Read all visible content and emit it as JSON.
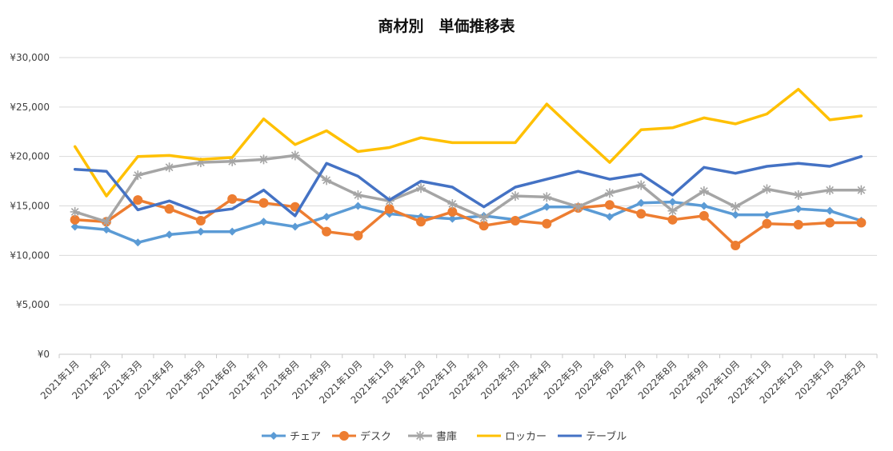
{
  "chart_data": {
    "type": "line",
    "title": "商材別　単価推移表",
    "xlabel": "",
    "ylabel": "",
    "ylim": [
      0,
      30000
    ],
    "yticks": [
      0,
      5000,
      10000,
      15000,
      20000,
      25000,
      30000
    ],
    "ytick_labels": [
      "¥0",
      "¥5,000",
      "¥10,000",
      "¥15,000",
      "¥20,000",
      "¥25,000",
      "¥30,000"
    ],
    "grid": true,
    "legend_position": "bottom",
    "categories": [
      "2021年1月",
      "2021年2月",
      "2021年3月",
      "2021年4月",
      "2021年5月",
      "2021年6月",
      "2021年7月",
      "2021年8月",
      "2021年9月",
      "2021年10月",
      "2021年11月",
      "2021年12月",
      "2022年1月",
      "2022年2月",
      "2022年3月",
      "2022年4月",
      "2022年5月",
      "2022年6月",
      "2022年7月",
      "2022年8月",
      "2022年9月",
      "2022年10月",
      "2022年11月",
      "2022年12月",
      "2023年1月",
      "2023年2月"
    ],
    "series": [
      {
        "name": "チェア",
        "color": "#5B9BD5",
        "marker": "diamond",
        "values": [
          12900,
          12600,
          11300,
          12100,
          12400,
          12400,
          13400,
          12900,
          13900,
          15000,
          14200,
          13900,
          13700,
          14000,
          13600,
          14900,
          14900,
          13900,
          15300,
          15400,
          15000,
          14100,
          14100,
          14700,
          14500,
          13500
        ]
      },
      {
        "name": "デスク",
        "color": "#ED7D31",
        "marker": "circle",
        "values": [
          13600,
          13400,
          15600,
          14700,
          13500,
          15700,
          15300,
          14900,
          12400,
          12000,
          14700,
          13400,
          14400,
          13000,
          13500,
          13200,
          14800,
          15100,
          14200,
          13600,
          14000,
          11000,
          13200,
          13100,
          13300,
          13300
        ]
      },
      {
        "name": "書庫",
        "color": "#A5A5A5",
        "marker": "star",
        "values": [
          14400,
          13400,
          18100,
          18900,
          19400,
          19500,
          19700,
          20100,
          17600,
          16100,
          15500,
          16800,
          15200,
          13800,
          16000,
          15900,
          14900,
          16300,
          17100,
          14500,
          16500,
          14900,
          16700,
          16100,
          16600,
          16600
        ]
      },
      {
        "name": "ロッカー",
        "color": "#FFC000",
        "marker": "none",
        "values": [
          21000,
          16000,
          20000,
          20100,
          19700,
          19900,
          23800,
          21200,
          22600,
          20500,
          20900,
          21900,
          21400,
          21400,
          21400,
          25300,
          22300,
          19400,
          22700,
          22900,
          23900,
          23300,
          24300,
          26800,
          23700,
          24100
        ]
      },
      {
        "name": "テーブル",
        "color": "#4472C4",
        "marker": "none",
        "values": [
          18700,
          18500,
          14600,
          15500,
          14300,
          14700,
          16600,
          14000,
          19300,
          18000,
          15600,
          17500,
          16900,
          14900,
          16900,
          17700,
          18500,
          17700,
          18200,
          16100,
          18900,
          18300,
          19000,
          19300,
          19000,
          20000
        ]
      }
    ]
  }
}
